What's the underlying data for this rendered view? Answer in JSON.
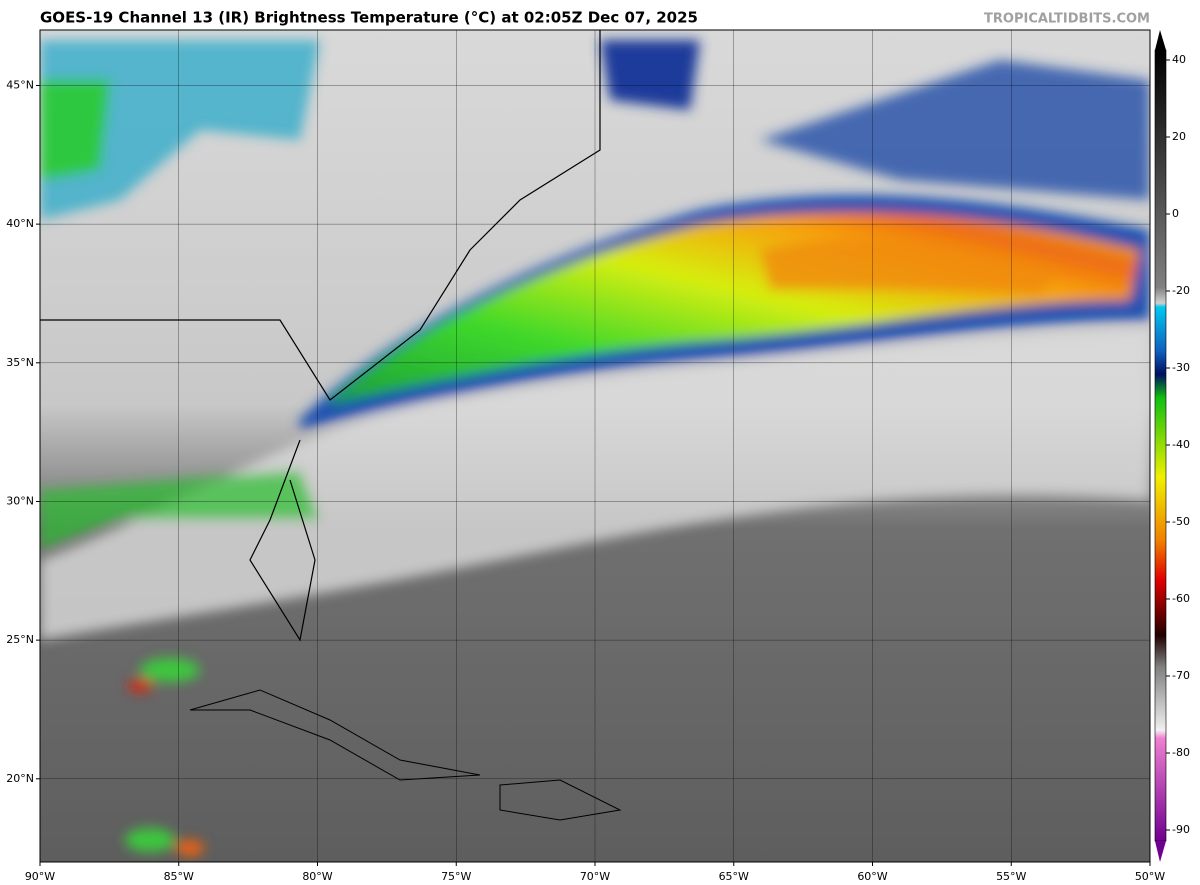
{
  "header": {
    "title": "GOES-19 Channel 13 (IR) Brightness Temperature (°C) at 02:05Z Dec 07, 2025",
    "credit": "TROPICALTIDBITS.COM"
  },
  "map": {
    "lonlim": [
      -90,
      -50
    ],
    "latlim": [
      17,
      47
    ],
    "lon_ticks": [
      {
        "value": -90,
        "label": "90°W"
      },
      {
        "value": -85,
        "label": "85°W"
      },
      {
        "value": -80,
        "label": "80°W"
      },
      {
        "value": -75,
        "label": "75°W"
      },
      {
        "value": -70,
        "label": "70°W"
      },
      {
        "value": -65,
        "label": "65°W"
      },
      {
        "value": -60,
        "label": "60°W"
      },
      {
        "value": -55,
        "label": "55°W"
      },
      {
        "value": -50,
        "label": "50°W"
      }
    ],
    "lat_ticks": [
      {
        "value": 20,
        "label": "20°N"
      },
      {
        "value": 25,
        "label": "25°N"
      },
      {
        "value": 30,
        "label": "30°N"
      },
      {
        "value": 35,
        "label": "35°N"
      },
      {
        "value": 40,
        "label": "40°N"
      },
      {
        "value": 45,
        "label": "45°N"
      }
    ]
  },
  "colorbar": {
    "ticks": [
      40,
      20,
      0,
      -20,
      -30,
      -40,
      -50,
      -60,
      -70,
      -80,
      -90
    ]
  }
}
